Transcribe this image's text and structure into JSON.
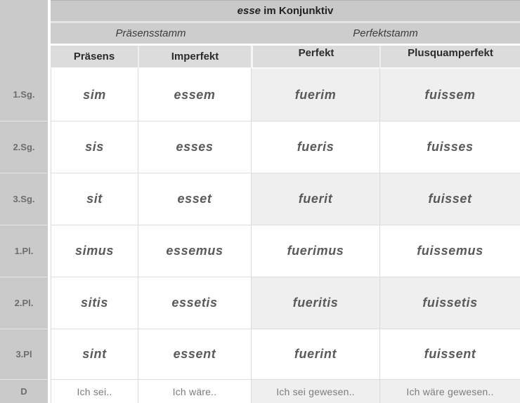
{
  "palette": {
    "label_column_bg": "#cacaca",
    "title_bg": "#c9c9c9",
    "stem_row_bg": "#cdcdcd",
    "header_row_bg": "#dcdcdc",
    "cell_white": "#ffffff",
    "cell_shaded": "#efefef",
    "grid_line": "#d9d9d9",
    "data_text": "#5a5a5a",
    "heading_text": "#222222",
    "row_label_text": "#6d6d6d",
    "translation_text": "#7c7c7c"
  },
  "table": {
    "title": {
      "verb": "esse",
      "rest": " im Konjunktiv"
    },
    "stem_groups": [
      "Präsensstamm",
      "Perfektstamm"
    ],
    "columns": [
      "Präsens",
      "Imperfekt",
      "Perfekt",
      "Plusquamperfekt"
    ],
    "rows": [
      {
        "label": "1.Sg.",
        "cells": [
          "sim",
          "essem",
          "fuerim",
          "fuissem"
        ]
      },
      {
        "label": "2.Sg.",
        "cells": [
          "sis",
          "esses",
          "fueris",
          "fuisses"
        ]
      },
      {
        "label": "3.Sg.",
        "cells": [
          "sit",
          "esset",
          "fuerit",
          "fuisset"
        ]
      },
      {
        "label": "1.Pl.",
        "cells": [
          "simus",
          "essemus",
          "fuerimus",
          "fuissemus"
        ]
      },
      {
        "label": "2.Pl.",
        "cells": [
          "sitis",
          "essetis",
          "fueritis",
          "fuissetis"
        ]
      },
      {
        "label": "3.Pl",
        "cells": [
          "sint",
          "essent",
          "fuerint",
          "fuissent"
        ]
      },
      {
        "label": "D",
        "cells": [
          "Ich sei..",
          "Ich wäre..",
          "Ich sei gewesen..",
          "Ich wäre gewesen.."
        ]
      }
    ]
  }
}
